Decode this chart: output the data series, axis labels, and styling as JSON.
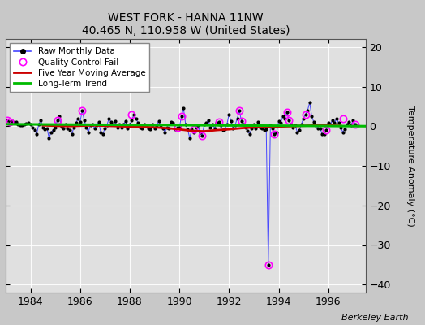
{
  "title": "WEST FORK - HANNA 11NW",
  "subtitle": "40.465 N, 110.958 W (United States)",
  "ylabel": "Temperature Anomaly (°C)",
  "watermark": "Berkeley Earth",
  "ylim": [
    -42,
    22
  ],
  "yticks": [
    -40,
    -30,
    -20,
    -10,
    0,
    10,
    20
  ],
  "xlim": [
    1983.0,
    1997.5
  ],
  "xticks": [
    1984,
    1986,
    1988,
    1990,
    1992,
    1994,
    1996
  ],
  "bg_color": "#c8c8c8",
  "plot_bg_color": "#e0e0e0",
  "raw_color": "#4444ff",
  "dot_color": "#000000",
  "ma_color": "#cc0000",
  "trend_color": "#00bb00",
  "qc_color": "#ff00ff",
  "raw_monthly_x": [
    1983.083,
    1983.167,
    1983.25,
    1983.333,
    1983.417,
    1983.5,
    1983.583,
    1983.667,
    1983.75,
    1983.833,
    1983.917,
    1984.0,
    1984.083,
    1984.167,
    1984.25,
    1984.333,
    1984.417,
    1984.5,
    1984.583,
    1984.667,
    1984.75,
    1984.833,
    1984.917,
    1985.0,
    1985.083,
    1985.167,
    1985.25,
    1985.333,
    1985.417,
    1985.5,
    1985.583,
    1985.667,
    1985.75,
    1985.833,
    1985.917,
    1986.0,
    1986.083,
    1986.167,
    1986.25,
    1986.333,
    1986.417,
    1986.5,
    1986.583,
    1986.667,
    1986.75,
    1986.833,
    1986.917,
    1987.0,
    1987.083,
    1987.167,
    1987.25,
    1987.333,
    1987.417,
    1987.5,
    1987.583,
    1987.667,
    1987.75,
    1987.833,
    1987.917,
    1988.0,
    1988.083,
    1988.167,
    1988.25,
    1988.333,
    1988.417,
    1988.5,
    1988.583,
    1988.667,
    1988.75,
    1988.833,
    1988.917,
    1989.0,
    1989.083,
    1989.167,
    1989.25,
    1989.333,
    1989.417,
    1989.5,
    1989.583,
    1989.667,
    1989.75,
    1989.833,
    1989.917,
    1990.0,
    1990.083,
    1990.167,
    1990.25,
    1990.333,
    1990.417,
    1990.5,
    1990.583,
    1990.667,
    1990.75,
    1990.833,
    1990.917,
    1991.0,
    1991.083,
    1991.167,
    1991.25,
    1991.333,
    1991.417,
    1991.5,
    1991.583,
    1991.667,
    1991.75,
    1991.833,
    1991.917,
    1992.0,
    1992.083,
    1992.167,
    1992.25,
    1992.333,
    1992.417,
    1992.5,
    1992.583,
    1992.667,
    1992.75,
    1992.833,
    1992.917,
    1993.0,
    1993.083,
    1993.167,
    1993.25,
    1993.333,
    1993.417,
    1993.5,
    1993.583,
    1993.667,
    1993.75,
    1993.833,
    1993.917,
    1994.0,
    1994.083,
    1994.167,
    1994.25,
    1994.333,
    1994.417,
    1994.5,
    1994.583,
    1994.667,
    1994.75,
    1994.833,
    1994.917,
    1995.0,
    1995.083,
    1995.167,
    1995.25,
    1995.333,
    1995.417,
    1995.5,
    1995.583,
    1995.667,
    1995.75,
    1995.833,
    1995.917,
    1996.0,
    1996.083,
    1996.167,
    1996.25,
    1996.333,
    1996.417,
    1996.5,
    1996.583,
    1996.667,
    1996.75,
    1996.833,
    1996.917,
    1997.0,
    1997.083
  ],
  "raw_monthly_y": [
    1.5,
    1.0,
    1.2,
    0.8,
    1.0,
    0.5,
    0.3,
    0.2,
    0.4,
    0.6,
    0.8,
    0.5,
    -0.3,
    -1.0,
    -2.0,
    0.5,
    1.5,
    -0.3,
    -0.8,
    -0.5,
    -3.0,
    -1.5,
    -1.0,
    -0.3,
    1.5,
    2.5,
    -0.2,
    -0.5,
    0.5,
    -0.5,
    -1.0,
    -2.0,
    -0.3,
    0.8,
    2.0,
    1.0,
    4.0,
    1.5,
    -0.3,
    -1.5,
    0.3,
    0.5,
    -0.5,
    0.3,
    1.0,
    -1.5,
    -2.0,
    -0.5,
    0.3,
    2.0,
    1.0,
    0.5,
    1.2,
    -0.3,
    0.5,
    -0.3,
    0.5,
    1.2,
    -0.5,
    0.5,
    1.5,
    3.0,
    2.0,
    0.8,
    -0.3,
    -0.5,
    0.5,
    0.3,
    -0.5,
    -0.8,
    0.5,
    -0.5,
    0.3,
    1.2,
    0.3,
    -0.5,
    -1.5,
    -0.3,
    -0.5,
    1.0,
    0.8,
    -0.8,
    -0.3,
    -0.3,
    2.5,
    4.5,
    0.5,
    -0.8,
    -3.0,
    -0.8,
    -1.5,
    -0.3,
    0.3,
    -1.5,
    -2.5,
    0.5,
    0.8,
    1.5,
    -0.3,
    0.5,
    -0.5,
    0.8,
    1.0,
    0.3,
    -1.0,
    -0.8,
    0.5,
    3.0,
    1.2,
    -0.5,
    0.3,
    2.0,
    4.0,
    1.2,
    0.5,
    -0.3,
    -1.2,
    -2.0,
    -0.5,
    0.5,
    -0.5,
    1.0,
    -0.3,
    -0.5,
    -1.0,
    -0.8,
    -35.0,
    0.3,
    -0.5,
    -2.0,
    -1.5,
    1.2,
    0.8,
    2.5,
    2.0,
    3.5,
    1.5,
    0.5,
    -0.3,
    0.3,
    -1.5,
    -1.0,
    0.5,
    2.0,
    3.0,
    4.0,
    6.0,
    2.5,
    1.0,
    0.3,
    -0.5,
    -0.5,
    -2.0,
    -2.0,
    -1.0,
    0.8,
    0.5,
    1.5,
    0.8,
    2.0,
    0.8,
    -0.3,
    -1.5,
    -0.8,
    0.5,
    1.0,
    0.3,
    1.5,
    0.5
  ],
  "qc_fail_x": [
    1983.083,
    1983.167,
    1985.083,
    1986.083,
    1988.083,
    1989.917,
    1990.083,
    1990.583,
    1990.917,
    1991.583,
    1992.417,
    1992.5,
    1993.583,
    1993.833,
    1994.333,
    1994.417,
    1995.083,
    1995.917,
    1996.583,
    1997.083
  ],
  "qc_fail_y": [
    1.5,
    1.0,
    1.5,
    4.0,
    3.0,
    -0.3,
    2.5,
    -0.8,
    -2.5,
    1.0,
    4.0,
    1.2,
    -35.0,
    -2.0,
    3.5,
    1.5,
    3.0,
    -1.0,
    2.0,
    0.5
  ],
  "moving_avg_x": [
    1984.5,
    1985.0,
    1985.5,
    1986.0,
    1986.5,
    1987.0,
    1987.5,
    1988.0,
    1988.5,
    1989.0,
    1989.5,
    1990.0,
    1990.5,
    1991.0,
    1991.5,
    1992.0,
    1992.5,
    1993.0,
    1993.5,
    1994.0,
    1994.5,
    1995.0,
    1995.5,
    1996.0,
    1996.5
  ],
  "moving_avg_y": [
    0.2,
    0.1,
    0.0,
    0.1,
    0.2,
    0.1,
    0.0,
    -0.1,
    -0.2,
    -0.3,
    -0.5,
    -0.8,
    -1.2,
    -1.3,
    -1.0,
    -0.8,
    -0.5,
    -0.3,
    -0.2,
    -0.1,
    0.0,
    0.1,
    0.2,
    0.2,
    0.1
  ],
  "trend_x": [
    1983.0,
    1997.5
  ],
  "trend_y": [
    0.5,
    0.0
  ]
}
